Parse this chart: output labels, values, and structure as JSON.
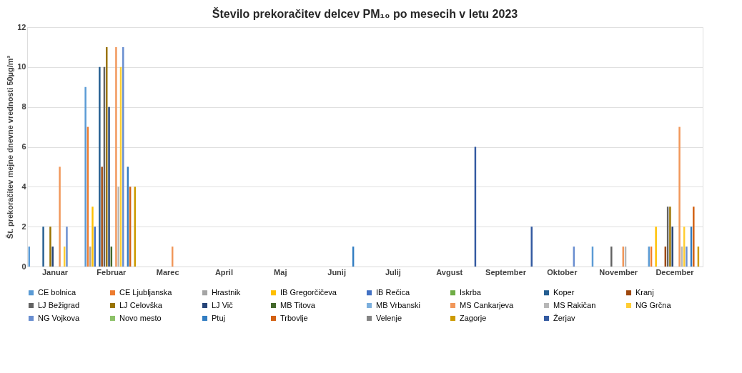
{
  "chart_data": {
    "type": "bar",
    "title": "Število prekoračitev delcev PM₁₀ po mesecih v letu 2023",
    "ylabel": "Št. prekoračitev mejne dnevne vrednosti 50µg/m³",
    "categories": [
      "Januar",
      "Februar",
      "Marec",
      "April",
      "Maj",
      "Junij",
      "Julij",
      "Avgust",
      "September",
      "Oktober",
      "November",
      "December"
    ],
    "ylim": [
      0,
      12
    ],
    "yticks": [
      0,
      2,
      4,
      6,
      8,
      10,
      12
    ],
    "grid": "y",
    "legend": "bottom",
    "series": [
      {
        "name": "CE bolnica",
        "color": "#5b9bd5",
        "values": [
          1,
          9,
          null,
          null,
          null,
          null,
          null,
          null,
          null,
          null,
          1,
          1
        ]
      },
      {
        "name": "CE Ljubljanska",
        "color": "#ed7d31",
        "values": [
          null,
          7,
          null,
          null,
          null,
          null,
          null,
          null,
          null,
          null,
          null,
          1
        ]
      },
      {
        "name": "Hrastnik",
        "color": "#a5a5a5",
        "values": [
          null,
          1,
          null,
          null,
          null,
          null,
          null,
          null,
          null,
          null,
          null,
          null
        ]
      },
      {
        "name": "IB Gregorčičeva",
        "color": "#ffc000",
        "values": [
          null,
          3,
          null,
          null,
          null,
          null,
          null,
          null,
          null,
          null,
          null,
          2
        ]
      },
      {
        "name": "IB Rečica",
        "color": "#4472c4",
        "values": [
          null,
          2,
          null,
          null,
          null,
          null,
          null,
          null,
          null,
          null,
          null,
          null
        ]
      },
      {
        "name": "Iskrba",
        "color": "#70ad47",
        "values": [
          null,
          null,
          null,
          null,
          null,
          null,
          null,
          null,
          null,
          null,
          null,
          null
        ]
      },
      {
        "name": "Koper",
        "color": "#255e91",
        "values": [
          2,
          10,
          null,
          null,
          null,
          null,
          null,
          null,
          null,
          null,
          null,
          null
        ]
      },
      {
        "name": "Kranj",
        "color": "#9e480e",
        "values": [
          null,
          5,
          null,
          null,
          null,
          null,
          null,
          null,
          null,
          null,
          null,
          1
        ]
      },
      {
        "name": "LJ Bežigrad",
        "color": "#636363",
        "values": [
          null,
          10,
          null,
          null,
          null,
          null,
          null,
          null,
          null,
          null,
          1,
          3
        ]
      },
      {
        "name": "LJ Celovška",
        "color": "#997300",
        "values": [
          2,
          11,
          null,
          null,
          null,
          null,
          null,
          null,
          null,
          null,
          null,
          3
        ]
      },
      {
        "name": "LJ Vič",
        "color": "#264478",
        "values": [
          1,
          8,
          null,
          null,
          null,
          null,
          null,
          null,
          null,
          null,
          null,
          2
        ]
      },
      {
        "name": "MB Titova",
        "color": "#43682b",
        "values": [
          null,
          1,
          null,
          null,
          null,
          null,
          null,
          null,
          null,
          null,
          null,
          null
        ]
      },
      {
        "name": "MB Vrbanski",
        "color": "#7cafdd",
        "values": [
          null,
          null,
          null,
          null,
          null,
          null,
          null,
          null,
          null,
          null,
          null,
          null
        ]
      },
      {
        "name": "MS Cankarjeva",
        "color": "#f1975a",
        "values": [
          5,
          11,
          1,
          null,
          null,
          null,
          null,
          null,
          null,
          null,
          1,
          7
        ]
      },
      {
        "name": "MS Rakičan",
        "color": "#b7b7b7",
        "values": [
          null,
          4,
          null,
          null,
          null,
          null,
          null,
          null,
          null,
          null,
          1,
          1
        ]
      },
      {
        "name": "NG Grčna",
        "color": "#ffcd33",
        "values": [
          1,
          10,
          null,
          null,
          null,
          null,
          null,
          null,
          null,
          null,
          null,
          2
        ]
      },
      {
        "name": "NG Vojkova",
        "color": "#698ed0",
        "values": [
          2,
          11,
          null,
          null,
          null,
          null,
          null,
          null,
          null,
          1,
          null,
          1
        ]
      },
      {
        "name": "Novo mesto",
        "color": "#8cc168",
        "values": [
          null,
          null,
          null,
          null,
          null,
          null,
          null,
          null,
          null,
          null,
          null,
          null
        ]
      },
      {
        "name": "Ptuj",
        "color": "#327dc2",
        "values": [
          null,
          5,
          null,
          null,
          null,
          1,
          null,
          null,
          null,
          null,
          null,
          2
        ]
      },
      {
        "name": "Trbovlje",
        "color": "#d26012",
        "values": [
          null,
          4,
          null,
          null,
          null,
          null,
          null,
          null,
          null,
          null,
          null,
          3
        ]
      },
      {
        "name": "Velenje",
        "color": "#848484",
        "values": [
          null,
          null,
          null,
          null,
          null,
          null,
          null,
          null,
          null,
          null,
          null,
          null
        ]
      },
      {
        "name": "Zagorje",
        "color": "#cc9a00",
        "values": [
          null,
          4,
          null,
          null,
          null,
          null,
          null,
          null,
          null,
          null,
          null,
          1
        ]
      },
      {
        "name": "Žerjav",
        "color": "#335aa1",
        "values": [
          null,
          null,
          null,
          null,
          null,
          null,
          null,
          6,
          2,
          null,
          null,
          null
        ]
      }
    ]
  }
}
